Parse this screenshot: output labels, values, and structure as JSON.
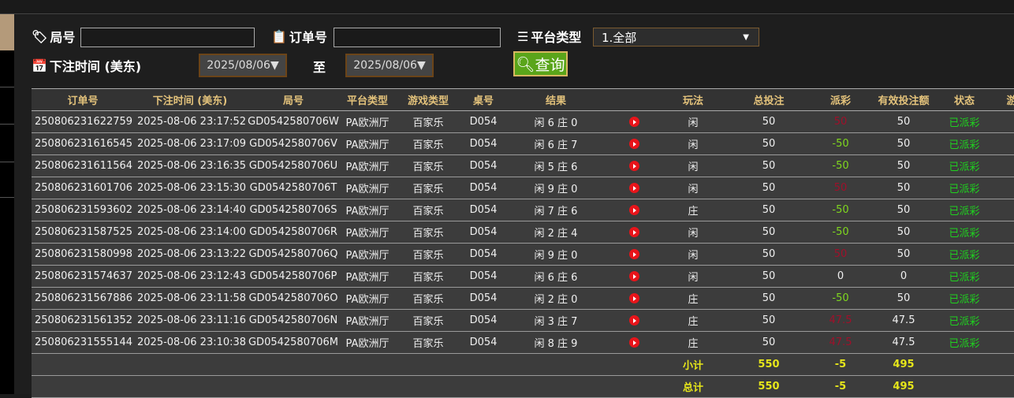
{
  "filters": {
    "round_label": "局号",
    "round_value": "",
    "order_label": "订单号",
    "order_value": "",
    "platform_label": "平台类型",
    "platform_value": "1.全部",
    "time_label": "下注时间 (美东)",
    "date_from": "2025/08/06▼",
    "to_label": "至",
    "date_to": "2025/08/06▼",
    "query_label": "查询"
  },
  "colors": {
    "header_text": "#e3c27b",
    "negative_payout": "#7fd81e",
    "positive_payout": "#a0102a",
    "status": "#1fd11f",
    "summary": "#e6e61a",
    "query_button": "#5aa51a"
  },
  "table": {
    "headers": [
      "订单号",
      "下注时间 (美东)",
      "局号",
      "平台类型",
      "游戏类型",
      "桌号",
      "结果",
      "",
      "玩法",
      "总投注",
      "派彩",
      "有效投注额",
      "状态",
      "游"
    ],
    "rows": [
      [
        "250806231622759",
        "2025-08-06 23:17:52",
        "GD0542580706W",
        "PA欧洲厅",
        "百家乐",
        "D054",
        "闲 6 庄 0",
        "play",
        "闲",
        "50",
        "50",
        "50",
        "已派彩"
      ],
      [
        "250806231616545",
        "2025-08-06 23:17:09",
        "GD0542580706V",
        "PA欧洲厅",
        "百家乐",
        "D054",
        "闲 6 庄 7",
        "play",
        "闲",
        "50",
        "-50",
        "50",
        "已派彩"
      ],
      [
        "250806231611564",
        "2025-08-06 23:16:35",
        "GD0542580706U",
        "PA欧洲厅",
        "百家乐",
        "D054",
        "闲 5 庄 6",
        "play",
        "闲",
        "50",
        "-50",
        "50",
        "已派彩"
      ],
      [
        "250806231601706",
        "2025-08-06 23:15:30",
        "GD0542580706T",
        "PA欧洲厅",
        "百家乐",
        "D054",
        "闲 9 庄 0",
        "play",
        "闲",
        "50",
        "50",
        "50",
        "已派彩"
      ],
      [
        "250806231593602",
        "2025-08-06 23:14:40",
        "GD0542580706S",
        "PA欧洲厅",
        "百家乐",
        "D054",
        "闲 7 庄 6",
        "play",
        "庄",
        "50",
        "-50",
        "50",
        "已派彩"
      ],
      [
        "250806231587525",
        "2025-08-06 23:14:00",
        "GD0542580706R",
        "PA欧洲厅",
        "百家乐",
        "D054",
        "闲 2 庄 4",
        "play",
        "闲",
        "50",
        "-50",
        "50",
        "已派彩"
      ],
      [
        "250806231580998",
        "2025-08-06 23:13:22",
        "GD0542580706Q",
        "PA欧洲厅",
        "百家乐",
        "D054",
        "闲 9 庄 0",
        "play",
        "闲",
        "50",
        "50",
        "50",
        "已派彩"
      ],
      [
        "250806231574637",
        "2025-08-06 23:12:43",
        "GD0542580706P",
        "PA欧洲厅",
        "百家乐",
        "D054",
        "闲 6 庄 6",
        "play",
        "闲",
        "50",
        "0",
        "0",
        "已派彩"
      ],
      [
        "250806231567886",
        "2025-08-06 23:11:58",
        "GD0542580706O",
        "PA欧洲厅",
        "百家乐",
        "D054",
        "闲 2 庄 0",
        "play",
        "庄",
        "50",
        "-50",
        "50",
        "已派彩"
      ],
      [
        "250806231561352",
        "2025-08-06 23:11:16",
        "GD0542580706N",
        "PA欧洲厅",
        "百家乐",
        "D054",
        "闲 3 庄 7",
        "play",
        "庄",
        "50",
        "47.5",
        "47.5",
        "已派彩"
      ],
      [
        "250806231555144",
        "2025-08-06 23:10:38",
        "GD0542580706M",
        "PA欧洲厅",
        "百家乐",
        "D054",
        "闲 8 庄 9",
        "play",
        "庄",
        "50",
        "47.5",
        "47.5",
        "已派彩"
      ]
    ],
    "subtotal": {
      "label": "小计",
      "total_bet": "550",
      "payout": "-5",
      "valid_bet": "495"
    },
    "total": {
      "label": "总计",
      "total_bet": "550",
      "payout": "-5",
      "valid_bet": "495"
    }
  }
}
